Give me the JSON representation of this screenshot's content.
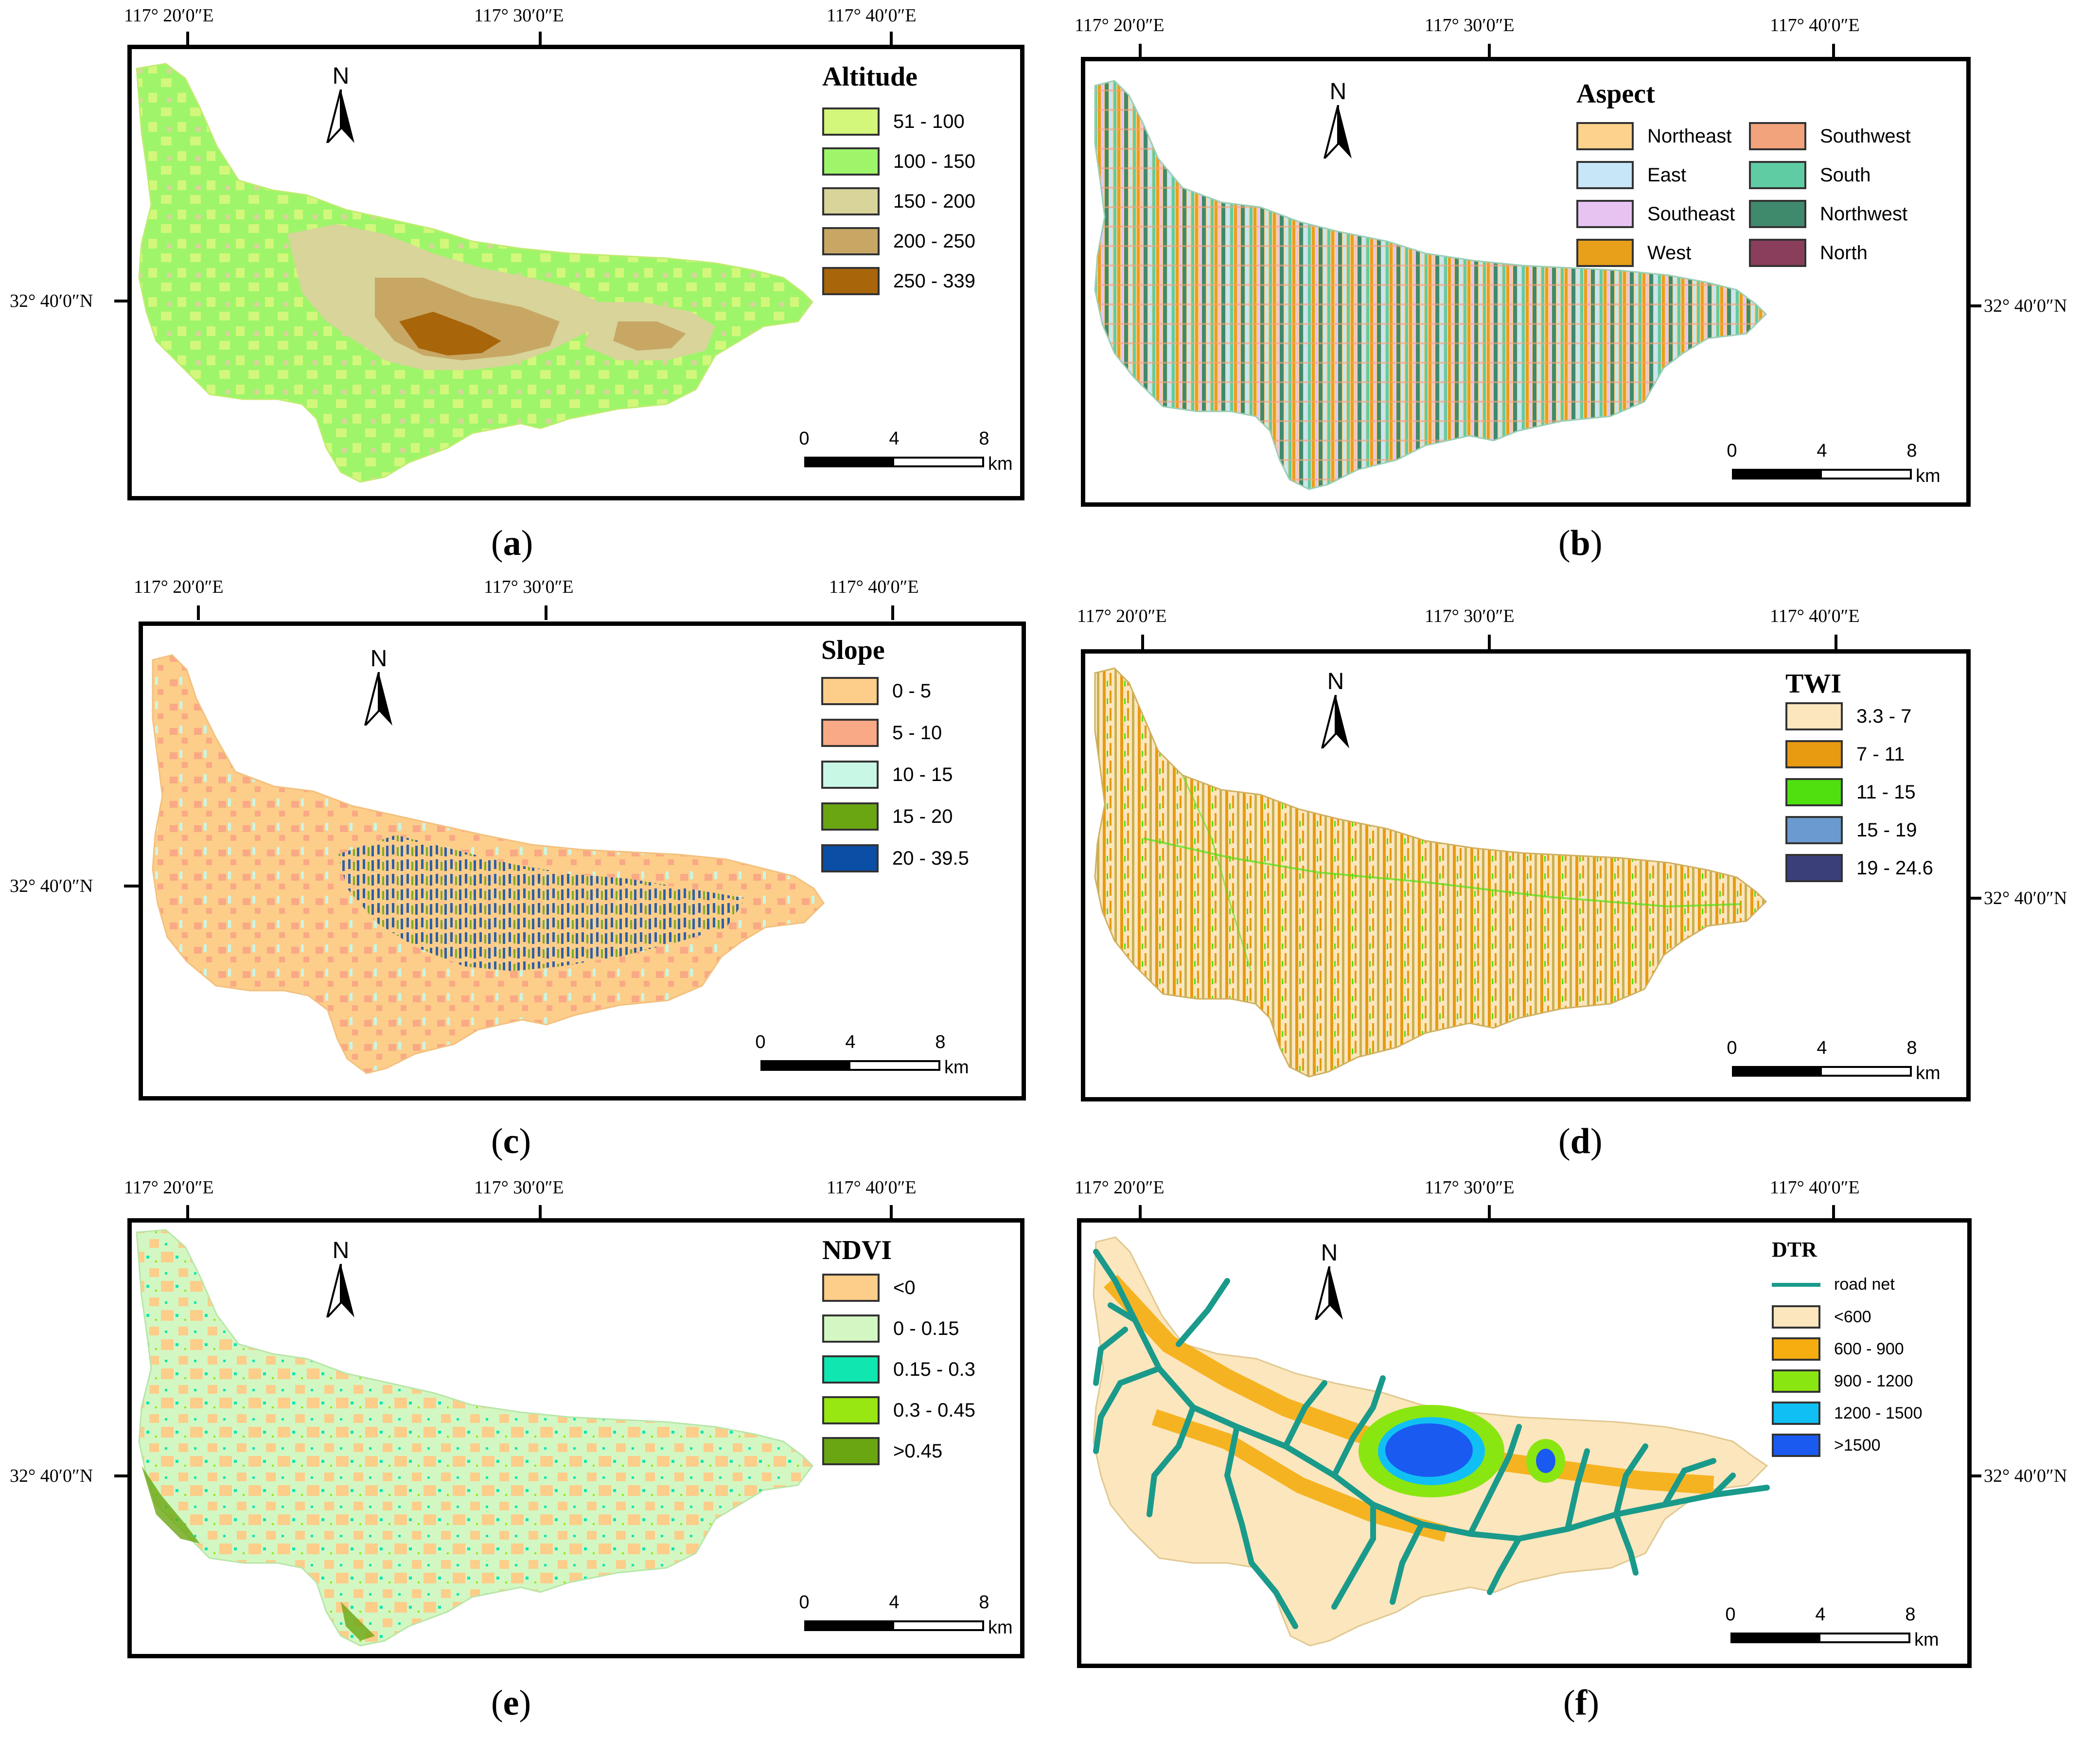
{
  "panels": [
    {
      "id": "a",
      "caption_letter": "a",
      "coords_top": [
        "117° 20′0″E",
        "117° 30′0″E",
        "117° 40′0″E"
      ],
      "coord_side": "32° 40′0″N",
      "side": "left",
      "legend_title": "Altitude",
      "legend": [
        {
          "label": "51 - 100",
          "color": "#d3f77a"
        },
        {
          "label": "100 - 150",
          "color": "#9ef56a"
        },
        {
          "label": "150 - 200",
          "color": "#d8d49a"
        },
        {
          "label": "200 - 250",
          "color": "#c8a765"
        },
        {
          "label": "250 - 339",
          "color": "#a8650a"
        }
      ],
      "north": "N",
      "scale": [
        "0",
        "4",
        "8"
      ],
      "scale_unit": "km"
    },
    {
      "id": "b",
      "caption_letter": "b",
      "coords_top": [
        "117° 20′0″E",
        "117° 30′0″E",
        "117° 40′0″E"
      ],
      "coord_side": "32° 40′0″N",
      "side": "right",
      "legend_title": "Aspect",
      "legend": [
        {
          "label": "Northeast",
          "color": "#fcd28c"
        },
        {
          "label": "East",
          "color": "#c7e6f7"
        },
        {
          "label": "Southeast",
          "color": "#e7c3f2"
        },
        {
          "label": "West",
          "color": "#e89f1a"
        },
        {
          "label": "Southwest",
          "color": "#f3a37c"
        },
        {
          "label": "South",
          "color": "#5fcca4"
        },
        {
          "label": "Northwest",
          "color": "#3f8a6c"
        },
        {
          "label": "North",
          "color": "#8a3e5c"
        }
      ],
      "north": "N",
      "scale": [
        "0",
        "4",
        "8"
      ],
      "scale_unit": "km"
    },
    {
      "id": "c",
      "caption_letter": "c",
      "coords_top": [
        "117° 20′0″E",
        "117° 30′0″E",
        "117° 40′0″E"
      ],
      "coord_side": "32° 40′0″N",
      "side": "left",
      "legend_title": "Slope",
      "legend": [
        {
          "label": "0 - 5",
          "color": "#fdcd8a"
        },
        {
          "label": "5 - 10",
          "color": "#f9a985"
        },
        {
          "label": "10 - 15",
          "color": "#c9f7e6"
        },
        {
          "label": "15 - 20",
          "color": "#6aa612"
        },
        {
          "label": "20 - 39.5",
          "color": "#0a4ea6"
        }
      ],
      "north": "N",
      "scale": [
        "0",
        "4",
        "8"
      ],
      "scale_unit": "km"
    },
    {
      "id": "d",
      "caption_letter": "d",
      "coords_top": [
        "117° 20′0″E",
        "117° 30′0″E",
        "117° 40′0″E"
      ],
      "coord_side": "32° 40′0″N",
      "side": "right",
      "legend_title": "TWI",
      "legend": [
        {
          "label": "3.3 - 7",
          "color": "#fbe6bd"
        },
        {
          "label": "7 - 11",
          "color": "#e89a10"
        },
        {
          "label": "11 - 15",
          "color": "#50e010"
        },
        {
          "label": "15 - 19",
          "color": "#6a9ad0"
        },
        {
          "label": "19 - 24.6",
          "color": "#3a3f7a"
        }
      ],
      "north": "N",
      "scale": [
        "0",
        "4",
        "8"
      ],
      "scale_unit": "km"
    },
    {
      "id": "e",
      "caption_letter": "e",
      "coords_top": [
        "117° 20′0″E",
        "117° 30′0″E",
        "117° 40′0″E"
      ],
      "coord_side": "32° 40′0″N",
      "side": "left",
      "legend_title": "NDVI",
      "legend": [
        {
          "label": "<0",
          "color": "#fdcd8a"
        },
        {
          "label": "0 - 0.15",
          "color": "#d3f7c3"
        },
        {
          "label": "0.15 - 0.3",
          "color": "#10e6b0"
        },
        {
          "label": "0.3 - 0.45",
          "color": "#98e612"
        },
        {
          "label": ">0.45",
          "color": "#6aa612"
        }
      ],
      "north": "N",
      "scale": [
        "0",
        "4",
        "8"
      ],
      "scale_unit": "km"
    },
    {
      "id": "f",
      "caption_letter": "f",
      "coords_top": [
        "117° 20′0″E",
        "117° 30′0″E",
        "117° 40′0″E"
      ],
      "coord_side": "32° 40′0″N",
      "side": "right",
      "legend_title": "DTR",
      "legend_line": {
        "label": "road net",
        "color": "#1a9a8a"
      },
      "legend": [
        {
          "label": "<600",
          "color": "#fbe6bd"
        },
        {
          "label": "600 - 900",
          "color": "#f5ad10"
        },
        {
          "label": "900 - 1200",
          "color": "#8ae610"
        },
        {
          "label": "1200 - 1500",
          "color": "#10c0f5"
        },
        {
          "label": ">1500",
          "color": "#1a5af0"
        }
      ],
      "north": "N",
      "scale": [
        "0",
        "4",
        "8"
      ],
      "scale_unit": "km"
    }
  ]
}
